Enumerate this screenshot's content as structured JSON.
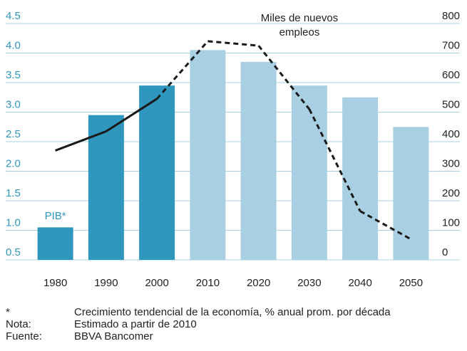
{
  "chart_data": {
    "type": "bar_line",
    "categories": [
      "1980",
      "1990",
      "2000",
      "2010",
      "2020",
      "2030",
      "2040",
      "2050"
    ],
    "series": [
      {
        "name": "PIB*",
        "type": "bar",
        "axis": "y",
        "colors": [
          "#2f97bd",
          "#2f97bd",
          "#2f97bd",
          "#a9d0e2",
          "#a9d0e2",
          "#a9d0e2",
          "#a9d0e2",
          "#a9d0e2"
        ],
        "values": [
          1.05,
          2.95,
          3.45,
          4.05,
          3.85,
          3.45,
          3.25,
          2.75
        ]
      },
      {
        "name": "Miles de nuevos empleos",
        "type": "line",
        "axis": "y2",
        "color": "#1a1a1a",
        "segment_styles": [
          "solid",
          "solid",
          "dashed",
          "dashed",
          "dashed",
          "dashed",
          "dashed"
        ],
        "values": [
          370,
          435,
          545,
          740,
          725,
          510,
          165,
          70
        ]
      }
    ],
    "ylim": [
      0.5,
      4.5
    ],
    "yticks": [
      0.5,
      {
        "value": 1,
        "label": "1.0"
      },
      1.5,
      {
        "value": 2,
        "label": "2.0"
      },
      2.5,
      {
        "value": 3,
        "label": "3.0"
      },
      3.5,
      {
        "value": 4,
        "label": "4.0"
      },
      4.5
    ],
    "y2lim": [
      0,
      800
    ],
    "y2ticks": [
      0,
      100,
      200,
      300,
      400,
      500,
      600,
      700,
      800
    ],
    "grid": true,
    "notes": [
      [
        "*",
        "Crecimiento tendencial de la economía, % anual prom. por década"
      ],
      [
        "Nota:",
        "Estimado a partir de 2010"
      ],
      [
        "Fuente:",
        "BBVA Bancomer"
      ]
    ]
  }
}
